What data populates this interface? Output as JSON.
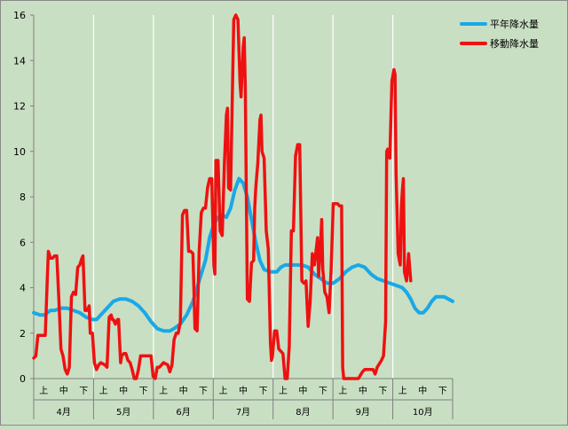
{
  "chart_data": {
    "type": "line",
    "title": "",
    "xlabel": "",
    "ylabel": "",
    "ylim": [
      0,
      16
    ],
    "yticks": [
      0,
      2,
      4,
      6,
      8,
      10,
      12,
      14,
      16
    ],
    "grid": "vertical at month boundaries",
    "legend_position": "top-right",
    "months": [
      "4月",
      "5月",
      "6月",
      "7月",
      "8月",
      "9月",
      "10月"
    ],
    "dekads": [
      "上",
      "中",
      "下"
    ],
    "series": [
      {
        "name": "平年降水量",
        "color": "#1aa8e6",
        "points": [
          [
            0,
            2.9
          ],
          [
            0.3,
            2.8
          ],
          [
            0.5,
            2.8
          ],
          [
            0.8,
            3.0
          ],
          [
            1.0,
            3.0
          ],
          [
            1.3,
            3.1
          ],
          [
            1.6,
            3.1
          ],
          [
            1.9,
            3.0
          ],
          [
            2.2,
            2.9
          ],
          [
            2.5,
            2.7
          ],
          [
            2.8,
            2.6
          ],
          [
            3.0,
            2.6
          ],
          [
            3.2,
            2.8
          ],
          [
            3.5,
            3.1
          ],
          [
            3.8,
            3.4
          ],
          [
            4.1,
            3.5
          ],
          [
            4.4,
            3.5
          ],
          [
            4.7,
            3.4
          ],
          [
            5.0,
            3.2
          ],
          [
            5.3,
            2.9
          ],
          [
            5.6,
            2.5
          ],
          [
            5.9,
            2.2
          ],
          [
            6.2,
            2.1
          ],
          [
            6.5,
            2.1
          ],
          [
            6.7,
            2.2
          ],
          [
            7.0,
            2.4
          ],
          [
            7.3,
            2.8
          ],
          [
            7.6,
            3.4
          ],
          [
            7.9,
            4.3
          ],
          [
            8.2,
            5.2
          ],
          [
            8.4,
            6.2
          ],
          [
            8.6,
            6.8
          ],
          [
            8.8,
            7.1
          ],
          [
            9.0,
            7.2
          ],
          [
            9.2,
            7.1
          ],
          [
            9.4,
            7.5
          ],
          [
            9.6,
            8.3
          ],
          [
            9.8,
            8.8
          ],
          [
            10.0,
            8.6
          ],
          [
            10.2,
            8.0
          ],
          [
            10.4,
            7.0
          ],
          [
            10.6,
            6.0
          ],
          [
            10.8,
            5.2
          ],
          [
            11.0,
            4.8
          ],
          [
            11.3,
            4.7
          ],
          [
            11.6,
            4.7
          ],
          [
            11.8,
            4.9
          ],
          [
            12.0,
            5.0
          ],
          [
            12.4,
            5.0
          ],
          [
            12.8,
            5.0
          ],
          [
            13.1,
            4.9
          ],
          [
            13.4,
            4.6
          ],
          [
            13.7,
            4.4
          ],
          [
            14.0,
            4.2
          ],
          [
            14.3,
            4.2
          ],
          [
            14.6,
            4.4
          ],
          [
            14.9,
            4.7
          ],
          [
            15.2,
            4.9
          ],
          [
            15.5,
            5.0
          ],
          [
            15.8,
            4.9
          ],
          [
            16.1,
            4.6
          ],
          [
            16.4,
            4.4
          ],
          [
            16.7,
            4.3
          ],
          [
            17.0,
            4.2
          ],
          [
            17.3,
            4.1
          ],
          [
            17.6,
            4.0
          ],
          [
            17.8,
            3.8
          ],
          [
            18.0,
            3.5
          ],
          [
            18.2,
            3.1
          ],
          [
            18.4,
            2.9
          ],
          [
            18.6,
            2.9
          ],
          [
            18.8,
            3.1
          ],
          [
            19.0,
            3.4
          ],
          [
            19.2,
            3.6
          ],
          [
            19.6,
            3.6
          ],
          [
            19.8,
            3.5
          ],
          [
            20.0,
            3.4
          ]
        ]
      },
      {
        "name": "移動降水量",
        "color": "#ee1111",
        "points": [
          [
            0,
            0.9
          ],
          [
            0.1,
            1.0
          ],
          [
            0.2,
            1.9
          ],
          [
            0.4,
            1.9
          ],
          [
            0.55,
            1.9
          ],
          [
            0.65,
            4.4
          ],
          [
            0.7,
            5.6
          ],
          [
            0.8,
            5.3
          ],
          [
            0.9,
            5.3
          ],
          [
            1.0,
            5.4
          ],
          [
            1.1,
            5.4
          ],
          [
            1.2,
            3.5
          ],
          [
            1.3,
            1.3
          ],
          [
            1.4,
            1.0
          ],
          [
            1.5,
            0.4
          ],
          [
            1.6,
            0.2
          ],
          [
            1.7,
            0.5
          ],
          [
            1.8,
            3.6
          ],
          [
            1.9,
            3.8
          ],
          [
            2.0,
            3.7
          ],
          [
            2.1,
            4.9
          ],
          [
            2.2,
            5.0
          ],
          [
            2.3,
            5.3
          ],
          [
            2.35,
            5.4
          ],
          [
            2.45,
            3.0
          ],
          [
            2.55,
            3.0
          ],
          [
            2.65,
            3.2
          ],
          [
            2.7,
            2.0
          ],
          [
            2.8,
            2.0
          ],
          [
            2.9,
            0.7
          ],
          [
            3.0,
            0.4
          ],
          [
            3.1,
            0.6
          ],
          [
            3.2,
            0.7
          ],
          [
            3.4,
            0.6
          ],
          [
            3.5,
            0.5
          ],
          [
            3.6,
            2.7
          ],
          [
            3.7,
            2.8
          ],
          [
            3.75,
            2.6
          ],
          [
            3.8,
            2.6
          ],
          [
            3.9,
            2.4
          ],
          [
            4.0,
            2.6
          ],
          [
            4.05,
            2.6
          ],
          [
            4.15,
            0.7
          ],
          [
            4.2,
            1.0
          ],
          [
            4.3,
            1.1
          ],
          [
            4.4,
            1.1
          ],
          [
            4.5,
            0.8
          ],
          [
            4.6,
            0.7
          ],
          [
            4.7,
            0.4
          ],
          [
            4.8,
            0.0
          ],
          [
            4.9,
            0.0
          ],
          [
            5.0,
            0.4
          ],
          [
            5.1,
            1.0
          ],
          [
            5.3,
            1.0
          ],
          [
            5.5,
            1.0
          ],
          [
            5.6,
            1.0
          ],
          [
            5.7,
            0.1
          ],
          [
            5.8,
            0.0
          ],
          [
            5.9,
            0.5
          ],
          [
            6.0,
            0.5
          ],
          [
            6.2,
            0.7
          ],
          [
            6.4,
            0.6
          ],
          [
            6.5,
            0.3
          ],
          [
            6.6,
            0.6
          ],
          [
            6.7,
            1.7
          ],
          [
            6.8,
            2.0
          ],
          [
            6.9,
            2.0
          ],
          [
            7.0,
            2.5
          ],
          [
            7.1,
            7.2
          ],
          [
            7.2,
            7.4
          ],
          [
            7.3,
            7.4
          ],
          [
            7.4,
            5.6
          ],
          [
            7.5,
            5.6
          ],
          [
            7.6,
            5.5
          ],
          [
            7.7,
            2.2
          ],
          [
            7.8,
            2.1
          ],
          [
            7.9,
            5.6
          ],
          [
            8.0,
            7.3
          ],
          [
            8.1,
            7.5
          ],
          [
            8.2,
            7.5
          ],
          [
            8.3,
            8.4
          ],
          [
            8.4,
            8.8
          ],
          [
            8.5,
            8.8
          ],
          [
            8.6,
            5.0
          ],
          [
            8.65,
            4.6
          ],
          [
            8.7,
            9.6
          ],
          [
            8.8,
            9.6
          ],
          [
            8.9,
            6.5
          ],
          [
            9.0,
            6.3
          ],
          [
            9.1,
            9.4
          ],
          [
            9.2,
            11.6
          ],
          [
            9.25,
            11.9
          ],
          [
            9.3,
            8.4
          ],
          [
            9.4,
            8.3
          ],
          [
            9.55,
            15.8
          ],
          [
            9.65,
            16.0
          ],
          [
            9.75,
            15.8
          ],
          [
            9.85,
            13.0
          ],
          [
            9.9,
            12.4
          ],
          [
            10.0,
            14.6
          ],
          [
            10.05,
            15.0
          ],
          [
            10.1,
            12.8
          ],
          [
            10.2,
            3.5
          ],
          [
            10.3,
            3.4
          ],
          [
            10.4,
            5.1
          ],
          [
            10.5,
            5.2
          ],
          [
            10.55,
            7.5
          ],
          [
            10.6,
            8.4
          ],
          [
            10.7,
            9.5
          ],
          [
            10.8,
            11.4
          ],
          [
            10.85,
            11.6
          ],
          [
            10.9,
            10.0
          ],
          [
            11.0,
            9.7
          ],
          [
            11.1,
            6.5
          ],
          [
            11.2,
            5.7
          ],
          [
            11.3,
            1.6
          ],
          [
            11.35,
            0.8
          ],
          [
            11.4,
            1.0
          ],
          [
            11.5,
            2.1
          ],
          [
            11.6,
            2.1
          ],
          [
            11.7,
            1.3
          ],
          [
            11.8,
            1.2
          ],
          [
            11.9,
            1.1
          ],
          [
            12.0,
            0.0
          ],
          [
            12.1,
            0.0
          ],
          [
            12.2,
            1.4
          ],
          [
            12.3,
            6.5
          ],
          [
            12.4,
            6.5
          ],
          [
            12.5,
            9.8
          ],
          [
            12.6,
            10.3
          ],
          [
            12.7,
            10.3
          ],
          [
            12.8,
            4.3
          ],
          [
            12.9,
            4.2
          ],
          [
            13.0,
            4.3
          ],
          [
            13.1,
            2.3
          ],
          [
            13.2,
            3.4
          ],
          [
            13.3,
            5.5
          ],
          [
            13.4,
            5.0
          ],
          [
            13.5,
            5.8
          ],
          [
            13.55,
            6.2
          ],
          [
            13.6,
            4.5
          ],
          [
            13.7,
            6.0
          ],
          [
            13.75,
            7.0
          ],
          [
            13.8,
            4.8
          ],
          [
            13.9,
            3.8
          ],
          [
            14.0,
            3.6
          ],
          [
            14.1,
            2.9
          ],
          [
            14.2,
            4.8
          ],
          [
            14.3,
            7.7
          ],
          [
            14.5,
            7.7
          ],
          [
            14.6,
            7.6
          ],
          [
            14.7,
            7.6
          ],
          [
            14.75,
            0.5
          ],
          [
            14.8,
            0.0
          ],
          [
            15.0,
            0.0
          ],
          [
            15.3,
            0.0
          ],
          [
            15.5,
            0.0
          ],
          [
            15.7,
            0.3
          ],
          [
            15.8,
            0.4
          ],
          [
            16.0,
            0.4
          ],
          [
            16.1,
            0.4
          ],
          [
            16.2,
            0.4
          ],
          [
            16.3,
            0.2
          ],
          [
            16.4,
            0.5
          ],
          [
            16.6,
            0.8
          ],
          [
            16.7,
            1.0
          ],
          [
            16.8,
            2.5
          ],
          [
            16.85,
            10.0
          ],
          [
            16.9,
            10.1
          ],
          [
            17.0,
            9.7
          ],
          [
            17.1,
            13.1
          ],
          [
            17.2,
            13.6
          ],
          [
            17.25,
            13.4
          ],
          [
            17.3,
            9.0
          ],
          [
            17.4,
            5.5
          ],
          [
            17.5,
            5.0
          ],
          [
            17.55,
            7.5
          ],
          [
            17.6,
            8.3
          ],
          [
            17.65,
            8.8
          ],
          [
            17.7,
            4.7
          ],
          [
            17.8,
            4.3
          ],
          [
            17.9,
            5.5
          ],
          [
            18.0,
            4.3
          ]
        ]
      }
    ]
  }
}
